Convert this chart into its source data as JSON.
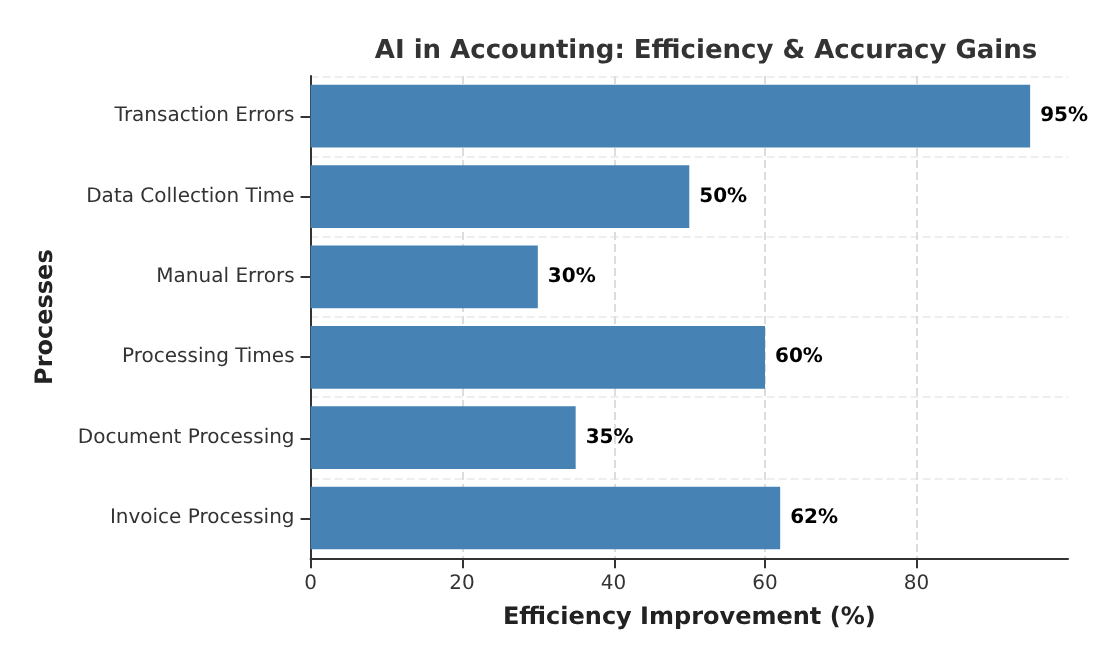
{
  "chart_data": {
    "type": "bar",
    "orientation": "horizontal",
    "title": "AI in Accounting: Efficiency & Accuracy Gains",
    "xlabel": "Efficiency Improvement (%)",
    "ylabel": "Processes",
    "categories": [
      "Transaction Errors",
      "Data Collection Time",
      "Manual Errors",
      "Processing Times",
      "Document Processing",
      "Invoice Processing"
    ],
    "values": [
      95,
      50,
      30,
      60,
      35,
      62
    ],
    "value_labels": [
      "95%",
      "50%",
      "30%",
      "60%",
      "35%",
      "62%"
    ],
    "color": "#4682b4",
    "xlim": [
      0,
      100
    ],
    "xticks": [
      0,
      20,
      40,
      60,
      80
    ],
    "grid": true
  }
}
